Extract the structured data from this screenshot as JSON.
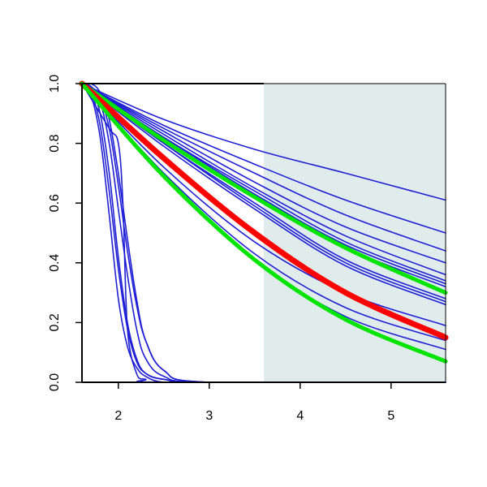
{
  "chart_data": {
    "type": "line",
    "title": "",
    "xlabel": "",
    "ylabel": "",
    "xlim": [
      1.6,
      5.6
    ],
    "ylim": [
      0.0,
      1.0
    ],
    "x_ticks": [
      2,
      3,
      4,
      5
    ],
    "x_tick_labels": [
      "2",
      "3",
      "4",
      "5"
    ],
    "y_ticks": [
      0.0,
      0.2,
      0.4,
      0.6,
      0.8,
      1.0
    ],
    "y_tick_labels": [
      "0.0",
      "0.2",
      "0.4",
      "0.6",
      "0.8",
      "1.0"
    ],
    "grid": false,
    "legend": "none",
    "shaded_region": {
      "x_start": 3.6,
      "x_end": 5.6,
      "color": "#e0ecec"
    },
    "colors": {
      "blue": "#1f1fd6",
      "red": "#ff0000",
      "green": "#00e400",
      "axis": "#000000"
    },
    "series": [
      {
        "color": "blue",
        "width": 1.6,
        "x": [
          1.6,
          2.5,
          3.5,
          4.5,
          5.6
        ],
        "values": [
          1.0,
          0.88,
          0.78,
          0.7,
          0.61
        ]
      },
      {
        "color": "blue",
        "width": 1.6,
        "x": [
          1.6,
          2.5,
          3.5,
          4.5,
          5.6
        ],
        "values": [
          1.0,
          0.86,
          0.73,
          0.61,
          0.5
        ]
      },
      {
        "color": "blue",
        "width": 1.6,
        "x": [
          1.6,
          2.5,
          3.5,
          4.5,
          5.6
        ],
        "values": [
          1.0,
          0.85,
          0.7,
          0.56,
          0.44
        ]
      },
      {
        "color": "blue",
        "width": 1.6,
        "x": [
          1.6,
          2.5,
          3.5,
          4.5,
          5.6
        ],
        "values": [
          1.0,
          0.84,
          0.67,
          0.52,
          0.4
        ]
      },
      {
        "color": "blue",
        "width": 1.6,
        "x": [
          1.6,
          2.5,
          3.5,
          4.5,
          5.6
        ],
        "values": [
          1.0,
          0.83,
          0.65,
          0.49,
          0.36
        ]
      },
      {
        "color": "blue",
        "width": 1.6,
        "x": [
          1.6,
          2.5,
          3.5,
          4.5,
          5.6
        ],
        "values": [
          1.0,
          0.82,
          0.64,
          0.47,
          0.34
        ]
      },
      {
        "color": "blue",
        "width": 1.6,
        "x": [
          1.6,
          2.5,
          3.5,
          4.5,
          5.6
        ],
        "values": [
          1.0,
          0.82,
          0.63,
          0.46,
          0.33
        ]
      },
      {
        "color": "blue",
        "width": 1.6,
        "x": [
          1.6,
          2.5,
          3.5,
          4.5,
          5.6
        ],
        "values": [
          1.0,
          0.81,
          0.62,
          0.45,
          0.32
        ]
      },
      {
        "color": "blue",
        "width": 1.6,
        "x": [
          1.6,
          2.5,
          3.5,
          4.5,
          5.6
        ],
        "values": [
          1.0,
          0.8,
          0.6,
          0.41,
          0.28
        ]
      },
      {
        "color": "blue",
        "width": 1.6,
        "x": [
          1.6,
          2.5,
          3.5,
          4.5,
          5.6
        ],
        "values": [
          1.0,
          0.8,
          0.59,
          0.4,
          0.27
        ]
      },
      {
        "color": "blue",
        "width": 1.6,
        "x": [
          1.6,
          2.5,
          3.5,
          4.5,
          5.6
        ],
        "values": [
          1.0,
          0.79,
          0.58,
          0.39,
          0.26
        ]
      },
      {
        "color": "blue",
        "width": 1.6,
        "x": [
          1.6,
          2.5,
          3.5,
          4.5,
          5.6
        ],
        "values": [
          1.0,
          0.72,
          0.47,
          0.3,
          0.19
        ]
      },
      {
        "color": "blue",
        "width": 1.6,
        "x": [
          1.6,
          2.5,
          3.5,
          4.5,
          5.6
        ],
        "values": [
          1.0,
          0.7,
          0.43,
          0.25,
          0.14
        ]
      },
      {
        "color": "blue",
        "width": 1.6,
        "x": [
          1.6,
          2.5,
          3.5,
          4.5,
          5.6
        ],
        "values": [
          1.0,
          0.69,
          0.41,
          0.22,
          0.11
        ]
      },
      {
        "color": "blue",
        "width": 1.6,
        "x": [
          1.6,
          1.7,
          1.8,
          1.9,
          2.0,
          2.1,
          2.2,
          2.3,
          2.5,
          3.0,
          5.6
        ],
        "values": [
          1.0,
          0.98,
          0.9,
          0.7,
          0.42,
          0.2,
          0.08,
          0.03,
          0.01,
          0.0,
          0.0
        ]
      },
      {
        "color": "blue",
        "width": 1.6,
        "x": [
          1.6,
          1.7,
          1.8,
          1.9,
          2.0,
          2.1,
          2.2,
          2.3,
          2.5,
          3.0,
          5.6
        ],
        "values": [
          1.0,
          0.96,
          0.82,
          0.56,
          0.28,
          0.12,
          0.05,
          0.02,
          0.0,
          0.0,
          0.0
        ]
      },
      {
        "color": "blue",
        "width": 1.6,
        "x": [
          1.6,
          1.7,
          1.8,
          1.9,
          2.0,
          2.1,
          2.2,
          2.3,
          2.5,
          3.0,
          5.6
        ],
        "values": [
          1.0,
          0.99,
          0.94,
          0.8,
          0.58,
          0.36,
          0.18,
          0.08,
          0.02,
          0.0,
          0.0
        ]
      },
      {
        "color": "blue",
        "width": 1.6,
        "x": [
          1.6,
          1.7,
          1.8,
          1.9,
          2.0,
          2.1,
          2.2,
          2.3,
          2.5,
          3.0,
          5.6
        ],
        "values": [
          1.0,
          0.97,
          0.86,
          0.64,
          0.38,
          0.18,
          0.07,
          0.03,
          0.01,
          0.0,
          0.0
        ]
      },
      {
        "color": "blue",
        "width": 1.6,
        "x": [
          1.6,
          1.7,
          1.8,
          1.9,
          2.0,
          2.1,
          2.2,
          2.3,
          2.5,
          3.0,
          5.6
        ],
        "values": [
          1.0,
          0.99,
          0.95,
          0.85,
          0.66,
          0.44,
          0.26,
          0.14,
          0.04,
          0.0,
          0.0
        ]
      },
      {
        "color": "blue",
        "width": 1.6,
        "x": [
          1.6,
          1.7,
          1.8,
          1.9,
          2.0,
          2.1,
          2.2,
          2.3,
          2.5,
          3.0,
          5.6
        ],
        "values": [
          1.0,
          1.0,
          0.97,
          0.88,
          0.7,
          0.48,
          0.28,
          0.14,
          0.04,
          0.0,
          0.0
        ]
      },
      {
        "color": "blue",
        "width": 1.6,
        "x": [
          1.6,
          1.9,
          2.0,
          2.05,
          2.1,
          2.2,
          2.3,
          2.5,
          5.6
        ],
        "values": [
          1.0,
          0.85,
          0.8,
          0.6,
          0.18,
          0.03,
          0.01,
          0.0,
          0.0
        ]
      },
      {
        "color": "green",
        "width": 5,
        "x": [
          1.6,
          2.5,
          3.5,
          4.5,
          5.6
        ],
        "values": [
          1.0,
          0.81,
          0.62,
          0.45,
          0.3
        ]
      },
      {
        "color": "red",
        "width": 7,
        "x": [
          1.6,
          2.5,
          3.5,
          4.5,
          5.6
        ],
        "values": [
          1.0,
          0.75,
          0.5,
          0.3,
          0.15
        ]
      },
      {
        "color": "green",
        "width": 5,
        "x": [
          1.6,
          2.5,
          3.5,
          4.5,
          5.6
        ],
        "values": [
          1.0,
          0.69,
          0.41,
          0.21,
          0.07
        ]
      }
    ]
  }
}
